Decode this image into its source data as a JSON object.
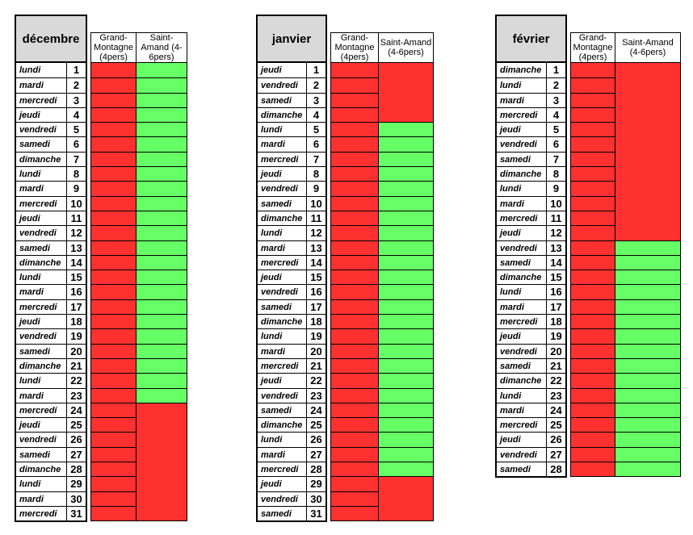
{
  "colors": {
    "unavailable_red": "#ff3030",
    "available_green": "#66ff66",
    "month_header_gray": "#d9d9d9",
    "border_black": "#000000"
  },
  "months": [
    {
      "name": "décembre",
      "columns": [
        "Grand-Montagne (4pers)",
        "Saint-Amand (4-6pers)"
      ],
      "days": [
        {
          "d": "lundi",
          "n": "1",
          "gm": "red",
          "sa": "green"
        },
        {
          "d": "mardi",
          "n": "2",
          "gm": "red",
          "sa": "green"
        },
        {
          "d": "mercredi",
          "n": "3",
          "gm": "red",
          "sa": "green"
        },
        {
          "d": "jeudi",
          "n": "4",
          "gm": "red",
          "sa": "green"
        },
        {
          "d": "vendredi",
          "n": "5",
          "gm": "red",
          "sa": "green"
        },
        {
          "d": "samedi",
          "n": "6",
          "gm": "red",
          "sa": "green"
        },
        {
          "d": "dimanche",
          "n": "7",
          "gm": "red",
          "sa": "green"
        },
        {
          "d": "lundi",
          "n": "8",
          "gm": "red",
          "sa": "green"
        },
        {
          "d": "mardi",
          "n": "9",
          "gm": "red",
          "sa": "green"
        },
        {
          "d": "mercredi",
          "n": "10",
          "gm": "red",
          "sa": "green"
        },
        {
          "d": "jeudi",
          "n": "11",
          "gm": "red",
          "sa": "green"
        },
        {
          "d": "vendredi",
          "n": "12",
          "gm": "red",
          "sa": "green"
        },
        {
          "d": "samedi",
          "n": "13",
          "gm": "red",
          "sa": "green"
        },
        {
          "d": "dimanche",
          "n": "14",
          "gm": "red",
          "sa": "green"
        },
        {
          "d": "lundi",
          "n": "15",
          "gm": "red",
          "sa": "green"
        },
        {
          "d": "mardi",
          "n": "16",
          "gm": "red",
          "sa": "green"
        },
        {
          "d": "mercredi",
          "n": "17",
          "gm": "red",
          "sa": "green"
        },
        {
          "d": "jeudi",
          "n": "18",
          "gm": "red",
          "sa": "green"
        },
        {
          "d": "vendredi",
          "n": "19",
          "gm": "red",
          "sa": "green"
        },
        {
          "d": "samedi",
          "n": "20",
          "gm": "red",
          "sa": "green"
        },
        {
          "d": "dimanche",
          "n": "21",
          "gm": "red",
          "sa": "green"
        },
        {
          "d": "lundi",
          "n": "22",
          "gm": "red",
          "sa": "green"
        },
        {
          "d": "mardi",
          "n": "23",
          "gm": "red",
          "sa": "green"
        },
        {
          "d": "mercredi",
          "n": "24",
          "gm": "red",
          "sa": "red"
        },
        {
          "d": "jeudi",
          "n": "25",
          "gm": "red",
          "sa": "red"
        },
        {
          "d": "vendredi",
          "n": "26",
          "gm": "red",
          "sa": "red"
        },
        {
          "d": "samedi",
          "n": "27",
          "gm": "red",
          "sa": "red"
        },
        {
          "d": "dimanche",
          "n": "28",
          "gm": "red",
          "sa": "red"
        },
        {
          "d": "lundi",
          "n": "29",
          "gm": "red",
          "sa": "red"
        },
        {
          "d": "mardi",
          "n": "30",
          "gm": "red",
          "sa": "red"
        },
        {
          "d": "mercredi",
          "n": "31",
          "gm": "red",
          "sa": "red"
        }
      ]
    },
    {
      "name": "janvier",
      "columns": [
        "Grand-Montagne (4pers)",
        "Saint-Amand (4-6pers)"
      ],
      "days": [
        {
          "d": "jeudi",
          "n": "1",
          "gm": "red",
          "sa": "red"
        },
        {
          "d": "vendredi",
          "n": "2",
          "gm": "red",
          "sa": "red"
        },
        {
          "d": "samedi",
          "n": "3",
          "gm": "red",
          "sa": "red"
        },
        {
          "d": "dimanche",
          "n": "4",
          "gm": "red",
          "sa": "red"
        },
        {
          "d": "lundi",
          "n": "5",
          "gm": "red",
          "sa": "green"
        },
        {
          "d": "mardi",
          "n": "6",
          "gm": "red",
          "sa": "green"
        },
        {
          "d": "mercredi",
          "n": "7",
          "gm": "red",
          "sa": "green"
        },
        {
          "d": "jeudi",
          "n": "8",
          "gm": "red",
          "sa": "green"
        },
        {
          "d": "vendredi",
          "n": "9",
          "gm": "red",
          "sa": "green"
        },
        {
          "d": "samedi",
          "n": "10",
          "gm": "red",
          "sa": "green"
        },
        {
          "d": "dimanche",
          "n": "11",
          "gm": "red",
          "sa": "green"
        },
        {
          "d": "lundi",
          "n": "12",
          "gm": "red",
          "sa": "green"
        },
        {
          "d": "mardi",
          "n": "13",
          "gm": "red",
          "sa": "green"
        },
        {
          "d": "mercredi",
          "n": "14",
          "gm": "red",
          "sa": "green"
        },
        {
          "d": "jeudi",
          "n": "15",
          "gm": "red",
          "sa": "green"
        },
        {
          "d": "vendredi",
          "n": "16",
          "gm": "red",
          "sa": "green"
        },
        {
          "d": "samedi",
          "n": "17",
          "gm": "red",
          "sa": "green"
        },
        {
          "d": "dimanche",
          "n": "18",
          "gm": "red",
          "sa": "green"
        },
        {
          "d": "lundi",
          "n": "19",
          "gm": "red",
          "sa": "green"
        },
        {
          "d": "mardi",
          "n": "20",
          "gm": "red",
          "sa": "green"
        },
        {
          "d": "mercredi",
          "n": "21",
          "gm": "red",
          "sa": "green"
        },
        {
          "d": "jeudi",
          "n": "22",
          "gm": "red",
          "sa": "green"
        },
        {
          "d": "vendredi",
          "n": "23",
          "gm": "red",
          "sa": "green"
        },
        {
          "d": "samedi",
          "n": "24",
          "gm": "red",
          "sa": "green"
        },
        {
          "d": "dimanche",
          "n": "25",
          "gm": "red",
          "sa": "green"
        },
        {
          "d": "lundi",
          "n": "26",
          "gm": "red",
          "sa": "green"
        },
        {
          "d": "mardi",
          "n": "27",
          "gm": "red",
          "sa": "green"
        },
        {
          "d": "mercredi",
          "n": "28",
          "gm": "red",
          "sa": "green"
        },
        {
          "d": "jeudi",
          "n": "29",
          "gm": "red",
          "sa": "red"
        },
        {
          "d": "vendredi",
          "n": "30",
          "gm": "red",
          "sa": "red"
        },
        {
          "d": "samedi",
          "n": "31",
          "gm": "red",
          "sa": "red"
        }
      ]
    },
    {
      "name": "février",
      "columns": [
        "Grand-Montagne (4pers)",
        "Saint-Amand (4-6pers)"
      ],
      "days": [
        {
          "d": "dimanche",
          "n": "1",
          "gm": "red",
          "sa": "red"
        },
        {
          "d": "lundi",
          "n": "2",
          "gm": "red",
          "sa": "red"
        },
        {
          "d": "mardi",
          "n": "3",
          "gm": "red",
          "sa": "red"
        },
        {
          "d": "mercredi",
          "n": "4",
          "gm": "red",
          "sa": "red"
        },
        {
          "d": "jeudi",
          "n": "5",
          "gm": "red",
          "sa": "red"
        },
        {
          "d": "vendredi",
          "n": "6",
          "gm": "red",
          "sa": "red"
        },
        {
          "d": "samedi",
          "n": "7",
          "gm": "red",
          "sa": "red"
        },
        {
          "d": "dimanche",
          "n": "8",
          "gm": "red",
          "sa": "red"
        },
        {
          "d": "lundi",
          "n": "9",
          "gm": "red",
          "sa": "red"
        },
        {
          "d": "mardi",
          "n": "10",
          "gm": "red",
          "sa": "red"
        },
        {
          "d": "mercredi",
          "n": "11",
          "gm": "red",
          "sa": "red"
        },
        {
          "d": "jeudi",
          "n": "12",
          "gm": "red",
          "sa": "red"
        },
        {
          "d": "vendredi",
          "n": "13",
          "gm": "red",
          "sa": "green"
        },
        {
          "d": "samedi",
          "n": "14",
          "gm": "red",
          "sa": "green"
        },
        {
          "d": "dimanche",
          "n": "15",
          "gm": "red",
          "sa": "green"
        },
        {
          "d": "lundi",
          "n": "16",
          "gm": "red",
          "sa": "green"
        },
        {
          "d": "mardi",
          "n": "17",
          "gm": "red",
          "sa": "green"
        },
        {
          "d": "mercredi",
          "n": "18",
          "gm": "red",
          "sa": "green"
        },
        {
          "d": "jeudi",
          "n": "19",
          "gm": "red",
          "sa": "green"
        },
        {
          "d": "vendredi",
          "n": "20",
          "gm": "red",
          "sa": "green"
        },
        {
          "d": "samedi",
          "n": "21",
          "gm": "red",
          "sa": "green"
        },
        {
          "d": "dimanche",
          "n": "22",
          "gm": "red",
          "sa": "green"
        },
        {
          "d": "lundi",
          "n": "23",
          "gm": "red",
          "sa": "green"
        },
        {
          "d": "mardi",
          "n": "24",
          "gm": "red",
          "sa": "green"
        },
        {
          "d": "mercredi",
          "n": "25",
          "gm": "red",
          "sa": "green"
        },
        {
          "d": "jeudi",
          "n": "26",
          "gm": "red",
          "sa": "green"
        },
        {
          "d": "vendredi",
          "n": "27",
          "gm": "red",
          "sa": "green"
        },
        {
          "d": "samedi",
          "n": "28",
          "gm": "red",
          "sa": "green"
        }
      ]
    }
  ]
}
